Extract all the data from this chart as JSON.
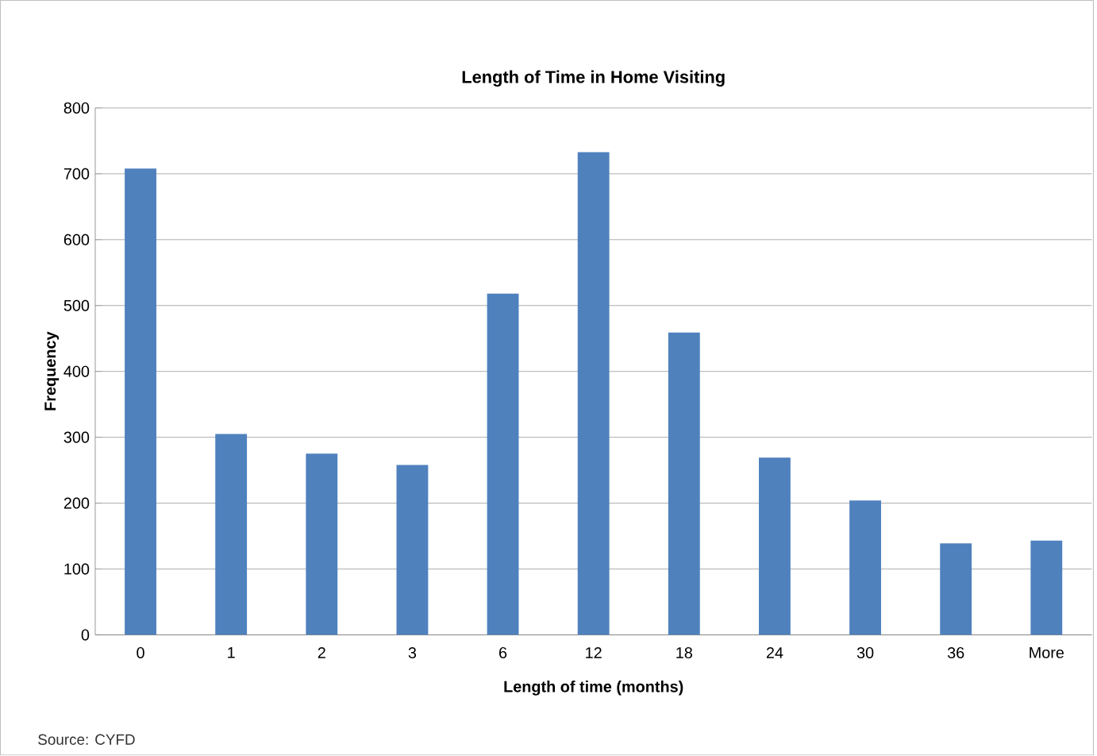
{
  "chart_data": {
    "type": "bar",
    "title": "Length of Time in Home Visiting",
    "xlabel": "Length of time (months)",
    "ylabel": "Frequency",
    "categories": [
      "0",
      "1",
      "2",
      "3",
      "6",
      "12",
      "18",
      "24",
      "30",
      "36",
      "More"
    ],
    "values": [
      708,
      305,
      275,
      258,
      518,
      733,
      459,
      269,
      204,
      139,
      143
    ],
    "color": "#4f81bd",
    "ylim": [
      0,
      800
    ],
    "yticks": [
      0,
      100,
      200,
      300,
      400,
      500,
      600,
      700,
      800
    ],
    "grid": "y",
    "annotations": [
      "Source: CYFD"
    ]
  }
}
